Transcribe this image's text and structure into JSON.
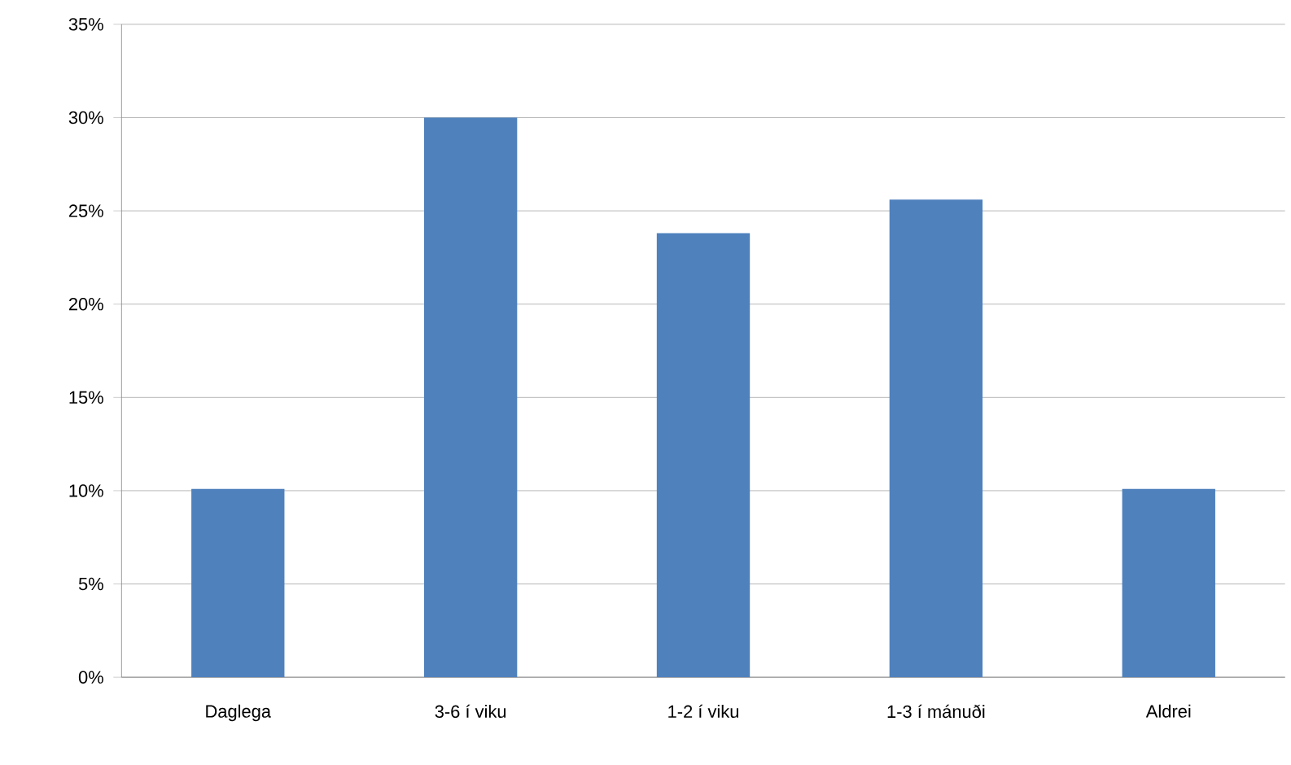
{
  "chart_data": {
    "type": "bar",
    "categories": [
      "Daglega",
      "3-6 í viku",
      "1-2 í viku",
      "1-3 í mánuði",
      "Aldrei"
    ],
    "values": [
      10.1,
      30.0,
      23.8,
      25.6,
      10.1
    ],
    "color": "#4f81bd",
    "ylim": [
      0,
      35
    ],
    "yticks": [
      {
        "value": 0,
        "label": "0%"
      },
      {
        "value": 5,
        "label": "5%"
      },
      {
        "value": 10,
        "label": "10%"
      },
      {
        "value": 15,
        "label": "15%"
      },
      {
        "value": 20,
        "label": "20%"
      },
      {
        "value": 25,
        "label": "25%"
      },
      {
        "value": 30,
        "label": "30%"
      },
      {
        "value": 35,
        "label": "35%"
      }
    ],
    "grid": "y"
  }
}
